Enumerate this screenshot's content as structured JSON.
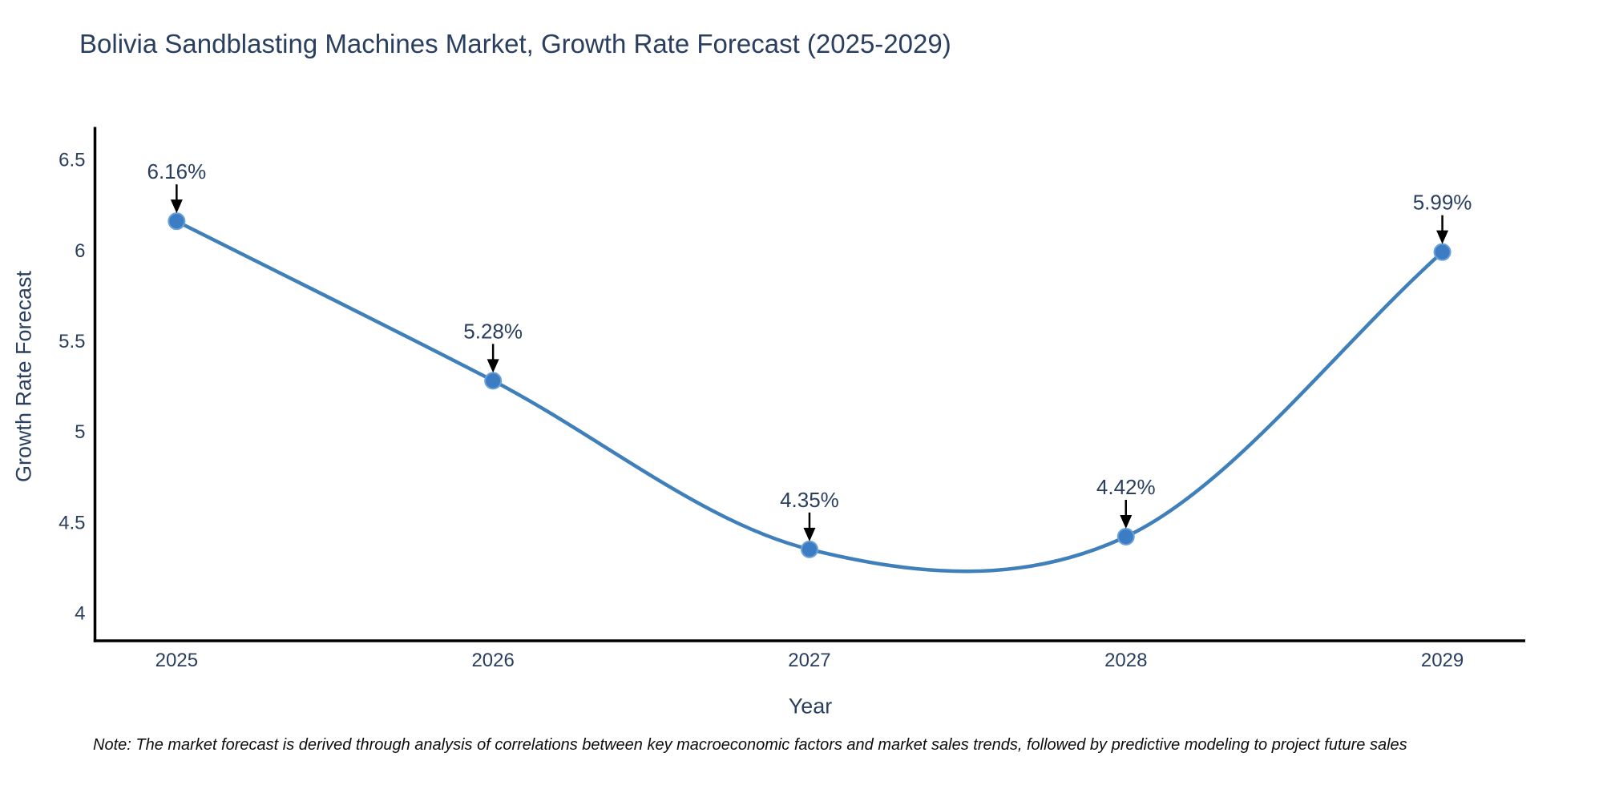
{
  "chart_data": {
    "type": "line",
    "title": "Bolivia Sandblasting Machines Market, Growth Rate Forecast (2025-2029)",
    "xlabel": "Year",
    "ylabel": "Growth Rate Forecast",
    "x": [
      2025,
      2026,
      2027,
      2028,
      2029
    ],
    "series": [
      {
        "name": "Growth Rate Forecast",
        "values": [
          6.16,
          5.28,
          4.35,
          4.42,
          5.99
        ],
        "point_labels": [
          "6.16%",
          "5.28%",
          "4.35%",
          "4.42%",
          "5.99%"
        ]
      }
    ],
    "line_shape": "spline",
    "xlim": [
      2024.742,
      2029.262
    ],
    "ylim": [
      3.8455,
      6.68
    ],
    "xticks": [
      2025,
      2026,
      2027,
      2028,
      2029
    ],
    "yticks": [
      4,
      4.5,
      5,
      5.5,
      6,
      6.5
    ],
    "grid": false,
    "legend_position": "none",
    "colors": {
      "line": "#3f7fba",
      "marker_fill": "#3b7cc4",
      "marker_edge": "#6ba1d4",
      "axis_line": "#000000",
      "arrow": "#000000",
      "text": "#2a3f5f",
      "note_text": "#0d0d0d",
      "background": "#ffffff"
    }
  },
  "note": {
    "text": "Note: The market forecast is derived through analysis of correlations between key macroeconomic factors and market sales trends, followed by predictive modeling to project future sales"
  }
}
